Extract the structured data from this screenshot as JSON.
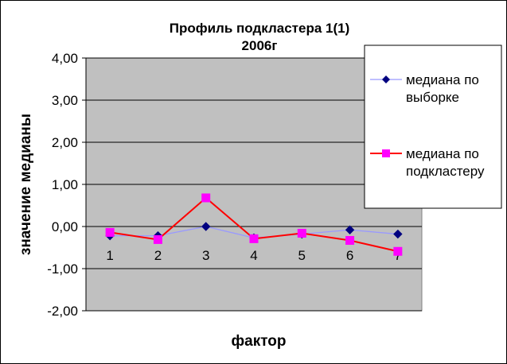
{
  "chart_data": {
    "type": "line",
    "title": "Профиль подкластера 1(1)",
    "subtitle": "2006г",
    "xlabel": "фактор",
    "ylabel": "значение медианы",
    "ylim": [
      -2,
      4
    ],
    "yticks": [
      "4,00",
      "3,00",
      "2,00",
      "1,00",
      "0,00",
      "-1,00",
      "-2,00"
    ],
    "categories": [
      "1",
      "2",
      "3",
      "4",
      "5",
      "6",
      "7"
    ],
    "plot_background": "#c0c0c0",
    "grid": "horizontal",
    "legend_position": "right",
    "series": [
      {
        "name": "медиана по выборке",
        "color": "#9999ff",
        "marker": "diamond",
        "marker_color": "#000080",
        "values": [
          -0.22,
          -0.22,
          0.0,
          -0.27,
          -0.18,
          -0.08,
          -0.18
        ]
      },
      {
        "name": "медиана по подкластеру",
        "color": "#ff0000",
        "marker": "square",
        "marker_color": "#ff00ff",
        "values": [
          -0.14,
          -0.31,
          0.68,
          -0.29,
          -0.16,
          -0.33,
          -0.59
        ]
      }
    ],
    "legend_labels": [
      [
        "медиана по",
        "выборке"
      ],
      [
        "медиана по",
        "подкластеру"
      ]
    ]
  }
}
